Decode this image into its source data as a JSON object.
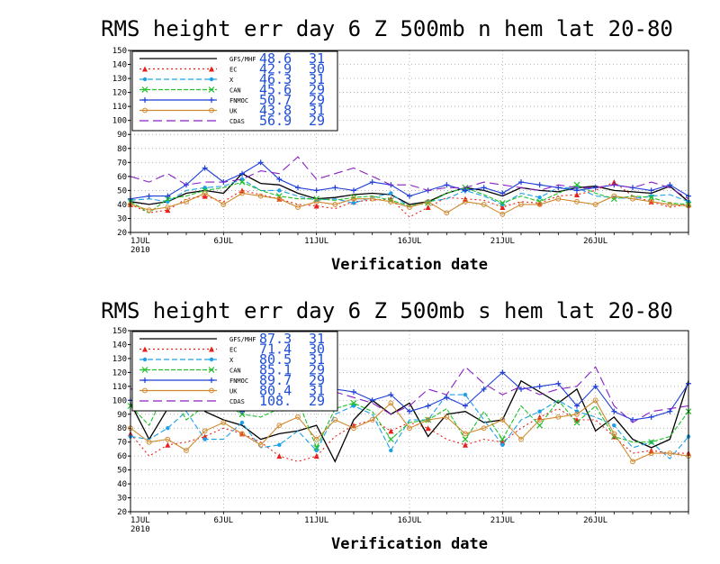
{
  "chart_data": [
    {
      "type": "line",
      "title": "RMS height err   day 6  Z 500mb   n hem   lat 20-80",
      "xlabel": "Verification date",
      "ylabel": "",
      "ylim": [
        20,
        150
      ],
      "yticks": [
        20,
        30,
        40,
        50,
        60,
        70,
        80,
        90,
        100,
        110,
        120,
        130,
        140,
        150
      ],
      "xlim": [
        1,
        31
      ],
      "xticks": [
        {
          "day": 1,
          "label": "1JUL",
          "sub": "2010"
        },
        {
          "day": 6,
          "label": "6JUL",
          "sub": ""
        },
        {
          "day": 11,
          "label": "11JUL",
          "sub": ""
        },
        {
          "day": 16,
          "label": "16JUL",
          "sub": ""
        },
        {
          "day": 21,
          "label": "21JUL",
          "sub": ""
        },
        {
          "day": 26,
          "label": "26JUL",
          "sub": ""
        }
      ],
      "grid": true,
      "legend_position": "top-left",
      "series": [
        {
          "name": "GFS/MHF",
          "mean": "48.6",
          "count": "31",
          "color": "#000000",
          "dash": "",
          "marker": "none",
          "x": [
            1,
            2,
            3,
            4,
            5,
            6,
            7,
            8,
            9,
            10,
            11,
            12,
            13,
            14,
            15,
            16,
            17,
            18,
            19,
            20,
            21,
            22,
            23,
            24,
            25,
            26,
            27,
            28,
            29,
            30,
            31
          ],
          "values": [
            42,
            40,
            42,
            48,
            50,
            48,
            62,
            55,
            54,
            48,
            44,
            45,
            47,
            48,
            47,
            40,
            42,
            48,
            52,
            50,
            46,
            52,
            50,
            49,
            52,
            53,
            50,
            49,
            48,
            53,
            42
          ]
        },
        {
          "name": "EC",
          "mean": "42.9",
          "count": "30",
          "color": "#e8201c",
          "dash": "2,3",
          "marker": "triangle",
          "x": [
            1,
            2,
            3,
            4,
            5,
            6,
            7,
            8,
            9,
            10,
            11,
            12,
            13,
            14,
            15,
            16,
            17,
            18,
            19,
            20,
            21,
            22,
            23,
            24,
            25,
            26,
            27,
            28,
            29,
            30,
            31
          ],
          "values": [
            40,
            34,
            36,
            44,
            46,
            42,
            50,
            47,
            44,
            40,
            39,
            37,
            42,
            43,
            44,
            31,
            38,
            45,
            44,
            43,
            38,
            42,
            41,
            46,
            47,
            50,
            56,
            46,
            42,
            38,
            40
          ]
        },
        {
          "name": "X",
          "mean": "46.3",
          "count": "31",
          "color": "#1ea0e8",
          "dash": "6,3",
          "marker": "circle",
          "x": [
            1,
            2,
            3,
            4,
            5,
            6,
            7,
            8,
            9,
            10,
            11,
            12,
            13,
            14,
            15,
            16,
            17,
            18,
            19,
            20,
            21,
            22,
            23,
            24,
            25,
            26,
            27,
            28,
            29,
            30,
            31
          ],
          "values": [
            43,
            44,
            42,
            50,
            52,
            53,
            58,
            50,
            50,
            46,
            43,
            44,
            41,
            45,
            48,
            38,
            42,
            44,
            50,
            46,
            40,
            48,
            45,
            52,
            52,
            46,
            45,
            44,
            46,
            47,
            42
          ]
        },
        {
          "name": "CAN",
          "mean": "45.6",
          "count": "29",
          "color": "#22c02a",
          "dash": "5,2",
          "marker": "x",
          "x": [
            1,
            2,
            3,
            4,
            5,
            6,
            7,
            8,
            9,
            10,
            11,
            12,
            13,
            14,
            15,
            16,
            17,
            18,
            19,
            20,
            21,
            22,
            23,
            24,
            25,
            26,
            27,
            28,
            29,
            30,
            31
          ],
          "values": [
            42,
            34,
            44,
            46,
            50,
            52,
            56,
            50,
            46,
            44,
            44,
            43,
            45,
            46,
            43,
            39,
            41,
            48,
            52,
            47,
            41,
            46,
            42,
            48,
            54,
            48,
            44,
            46,
            45,
            41,
            40
          ]
        },
        {
          "name": "FNMOC",
          "mean": "50.7",
          "count": "29",
          "color": "#1f3fd8",
          "dash": "",
          "marker": "plus",
          "x": [
            1,
            2,
            3,
            4,
            5,
            6,
            7,
            8,
            9,
            10,
            11,
            12,
            13,
            14,
            15,
            16,
            17,
            18,
            19,
            20,
            21,
            22,
            23,
            24,
            25,
            26,
            27,
            28,
            29,
            30,
            31
          ],
          "values": [
            44,
            46,
            46,
            54,
            66,
            56,
            62,
            70,
            58,
            52,
            50,
            52,
            50,
            56,
            54,
            46,
            50,
            54,
            50,
            52,
            48,
            56,
            54,
            52,
            50,
            52,
            54,
            52,
            50,
            54,
            46
          ]
        },
        {
          "name": "UK",
          "mean": "43.8",
          "count": "31",
          "color": "#d08a2e",
          "dash": "",
          "marker": "circle-open",
          "x": [
            1,
            2,
            3,
            4,
            5,
            6,
            7,
            8,
            9,
            10,
            11,
            12,
            13,
            14,
            15,
            16,
            17,
            18,
            19,
            20,
            21,
            22,
            23,
            24,
            25,
            26,
            27,
            28,
            29,
            30,
            31
          ],
          "values": [
            40,
            36,
            38,
            42,
            48,
            40,
            48,
            46,
            44,
            38,
            42,
            40,
            44,
            44,
            42,
            38,
            42,
            34,
            42,
            40,
            33,
            40,
            40,
            44,
            42,
            40,
            46,
            44,
            42,
            40,
            39
          ]
        },
        {
          "name": "CDAS",
          "mean": "56.9",
          "count": "29",
          "color": "#8a1fc4",
          "dash": "10,5",
          "marker": "none",
          "x": [
            1,
            2,
            3,
            4,
            5,
            6,
            7,
            8,
            9,
            10,
            11,
            12,
            13,
            14,
            15,
            16,
            17,
            18,
            19,
            20,
            21,
            22,
            23,
            24,
            25,
            26,
            27,
            28,
            29,
            30,
            31
          ],
          "values": [
            60,
            56,
            62,
            54,
            56,
            56,
            58,
            64,
            62,
            74,
            58,
            62,
            66,
            60,
            54,
            54,
            50,
            52,
            52,
            56,
            54,
            52,
            50,
            54,
            52,
            52,
            54,
            52,
            56,
            52,
            44
          ]
        }
      ]
    },
    {
      "type": "line",
      "title": "RMS height err   day 6  Z 500mb   s hem   lat 20-80",
      "xlabel": "Verification date",
      "ylabel": "",
      "ylim": [
        20,
        150
      ],
      "yticks": [
        20,
        30,
        40,
        50,
        60,
        70,
        80,
        90,
        100,
        110,
        120,
        130,
        140,
        150
      ],
      "xlim": [
        1,
        31
      ],
      "xticks": [
        {
          "day": 1,
          "label": "1JUL",
          "sub": "2010"
        },
        {
          "day": 6,
          "label": "6JUL",
          "sub": ""
        },
        {
          "day": 11,
          "label": "11JUL",
          "sub": ""
        },
        {
          "day": 16,
          "label": "16JUL",
          "sub": ""
        },
        {
          "day": 21,
          "label": "21JUL",
          "sub": ""
        },
        {
          "day": 26,
          "label": "26JUL",
          "sub": ""
        }
      ],
      "grid": true,
      "legend_position": "top-left",
      "series": [
        {
          "name": "GFS/MHF",
          "mean": "87.3",
          "count": "31",
          "color": "#000000",
          "dash": "",
          "marker": "none",
          "x": [
            1,
            2,
            3,
            4,
            5,
            6,
            7,
            8,
            9,
            10,
            11,
            12,
            13,
            14,
            15,
            16,
            17,
            18,
            19,
            20,
            21,
            22,
            23,
            24,
            25,
            26,
            27,
            28,
            29,
            30,
            31
          ],
          "values": [
            98,
            72,
            94,
            116,
            92,
            86,
            82,
            72,
            76,
            78,
            82,
            56,
            86,
            100,
            90,
            98,
            74,
            90,
            92,
            84,
            86,
            114,
            106,
            98,
            108,
            78,
            88,
            72,
            66,
            72,
            114
          ]
        },
        {
          "name": "EC",
          "mean": "71.4",
          "count": "30",
          "color": "#e8201c",
          "dash": "2,3",
          "marker": "triangle",
          "x": [
            1,
            2,
            3,
            4,
            5,
            6,
            7,
            8,
            9,
            10,
            11,
            12,
            13,
            14,
            15,
            16,
            17,
            18,
            19,
            20,
            21,
            22,
            23,
            24,
            25,
            26,
            27,
            28,
            29,
            30,
            31
          ],
          "values": [
            76,
            60,
            68,
            70,
            74,
            80,
            76,
            70,
            60,
            56,
            60,
            74,
            82,
            86,
            78,
            84,
            80,
            72,
            68,
            72,
            70,
            80,
            88,
            94,
            86,
            86,
            74,
            62,
            64,
            62,
            62
          ]
        },
        {
          "name": "X",
          "mean": "80.5",
          "count": "31",
          "color": "#1ea0e8",
          "dash": "6,3",
          "marker": "circle",
          "x": [
            1,
            2,
            3,
            4,
            5,
            6,
            7,
            8,
            9,
            10,
            11,
            12,
            13,
            14,
            15,
            16,
            17,
            18,
            19,
            20,
            21,
            22,
            23,
            24,
            25,
            26,
            27,
            28,
            29,
            30,
            31
          ],
          "values": [
            74,
            72,
            80,
            92,
            72,
            72,
            84,
            66,
            68,
            78,
            64,
            90,
            96,
            90,
            64,
            86,
            86,
            104,
            104,
            86,
            68,
            86,
            92,
            100,
            92,
            88,
            82,
            66,
            70,
            58,
            74
          ]
        },
        {
          "name": "CAN",
          "mean": "85.1",
          "count": "29",
          "color": "#22c02a",
          "dash": "5,2",
          "marker": "x",
          "x": [
            1,
            2,
            3,
            4,
            5,
            6,
            7,
            8,
            9,
            10,
            11,
            12,
            13,
            14,
            15,
            16,
            17,
            18,
            19,
            20,
            21,
            22,
            23,
            24,
            25,
            26,
            27,
            28,
            29,
            30,
            31
          ],
          "values": [
            96,
            82,
            110,
            86,
            96,
            98,
            90,
            88,
            94,
            100,
            66,
            94,
            98,
            92,
            72,
            84,
            86,
            94,
            72,
            92,
            72,
            96,
            82,
            100,
            84,
            96,
            74,
            70,
            70,
            74,
            92
          ]
        },
        {
          "name": "FNMOC",
          "mean": "89.7",
          "count": "29",
          "color": "#1f3fd8",
          "dash": "",
          "marker": "plus",
          "x": [
            1,
            2,
            3,
            4,
            5,
            6,
            7,
            8,
            9,
            10,
            11,
            12,
            13,
            14,
            15,
            16,
            17,
            18,
            19,
            20,
            21,
            22,
            23,
            24,
            25,
            26,
            27,
            28,
            29,
            30,
            31
          ],
          "values": [
            100,
            96,
            110,
            102,
            98,
            98,
            92,
            108,
            102,
            112,
            98,
            108,
            106,
            100,
            104,
            92,
            96,
            102,
            96,
            108,
            120,
            108,
            110,
            112,
            96,
            110,
            92,
            86,
            88,
            92,
            112
          ]
        },
        {
          "name": "UK",
          "mean": "80.4",
          "count": "31",
          "color": "#d08a2e",
          "dash": "",
          "marker": "circle-open",
          "x": [
            1,
            2,
            3,
            4,
            5,
            6,
            7,
            8,
            9,
            10,
            11,
            12,
            13,
            14,
            15,
            16,
            17,
            18,
            19,
            20,
            21,
            22,
            23,
            24,
            25,
            26,
            27,
            28,
            29,
            30,
            31
          ],
          "values": [
            80,
            70,
            72,
            64,
            78,
            84,
            76,
            68,
            82,
            88,
            72,
            86,
            80,
            86,
            98,
            80,
            86,
            88,
            76,
            80,
            86,
            72,
            86,
            88,
            90,
            100,
            76,
            56,
            62,
            62,
            60
          ]
        },
        {
          "name": "CDAS",
          "mean": "108.",
          "count": "29",
          "color": "#8a1fc4",
          "dash": "10,5",
          "marker": "none",
          "x": [
            1,
            2,
            3,
            4,
            5,
            6,
            7,
            8,
            9,
            10,
            11,
            12,
            13,
            14,
            15,
            16,
            17,
            18,
            19,
            20,
            21,
            22,
            23,
            24,
            25,
            26,
            27,
            28,
            29,
            30,
            31
          ],
          "values": [
            108,
            110,
            126,
            104,
            98,
            94,
            100,
            104,
            104,
            114,
            108,
            106,
            102,
            98,
            90,
            96,
            108,
            104,
            124,
            112,
            104,
            110,
            104,
            108,
            110,
            124,
            96,
            84,
            92,
            94,
            96
          ]
        }
      ]
    }
  ]
}
